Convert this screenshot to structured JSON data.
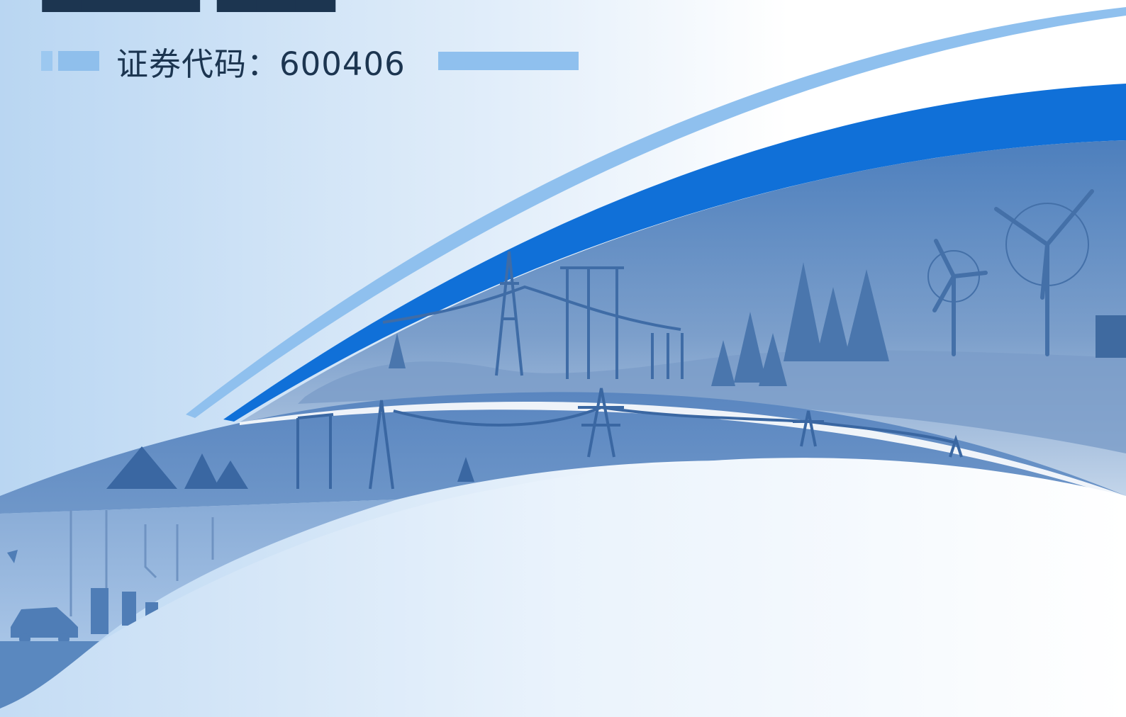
{
  "cover": {
    "stock_label": "证券代码：600406",
    "colors": {
      "navy_text": "#1c3550",
      "accent_blue": "#0f6fd6",
      "light_blue": "#8fbfec",
      "scene_blue": "#4f7fba",
      "silhouette": "#3d6aa3"
    },
    "scene_icons": [
      "transmission-tower",
      "pine-tree",
      "wind-turbine",
      "solar-panel",
      "electric-car",
      "charging-station",
      "bird"
    ]
  }
}
